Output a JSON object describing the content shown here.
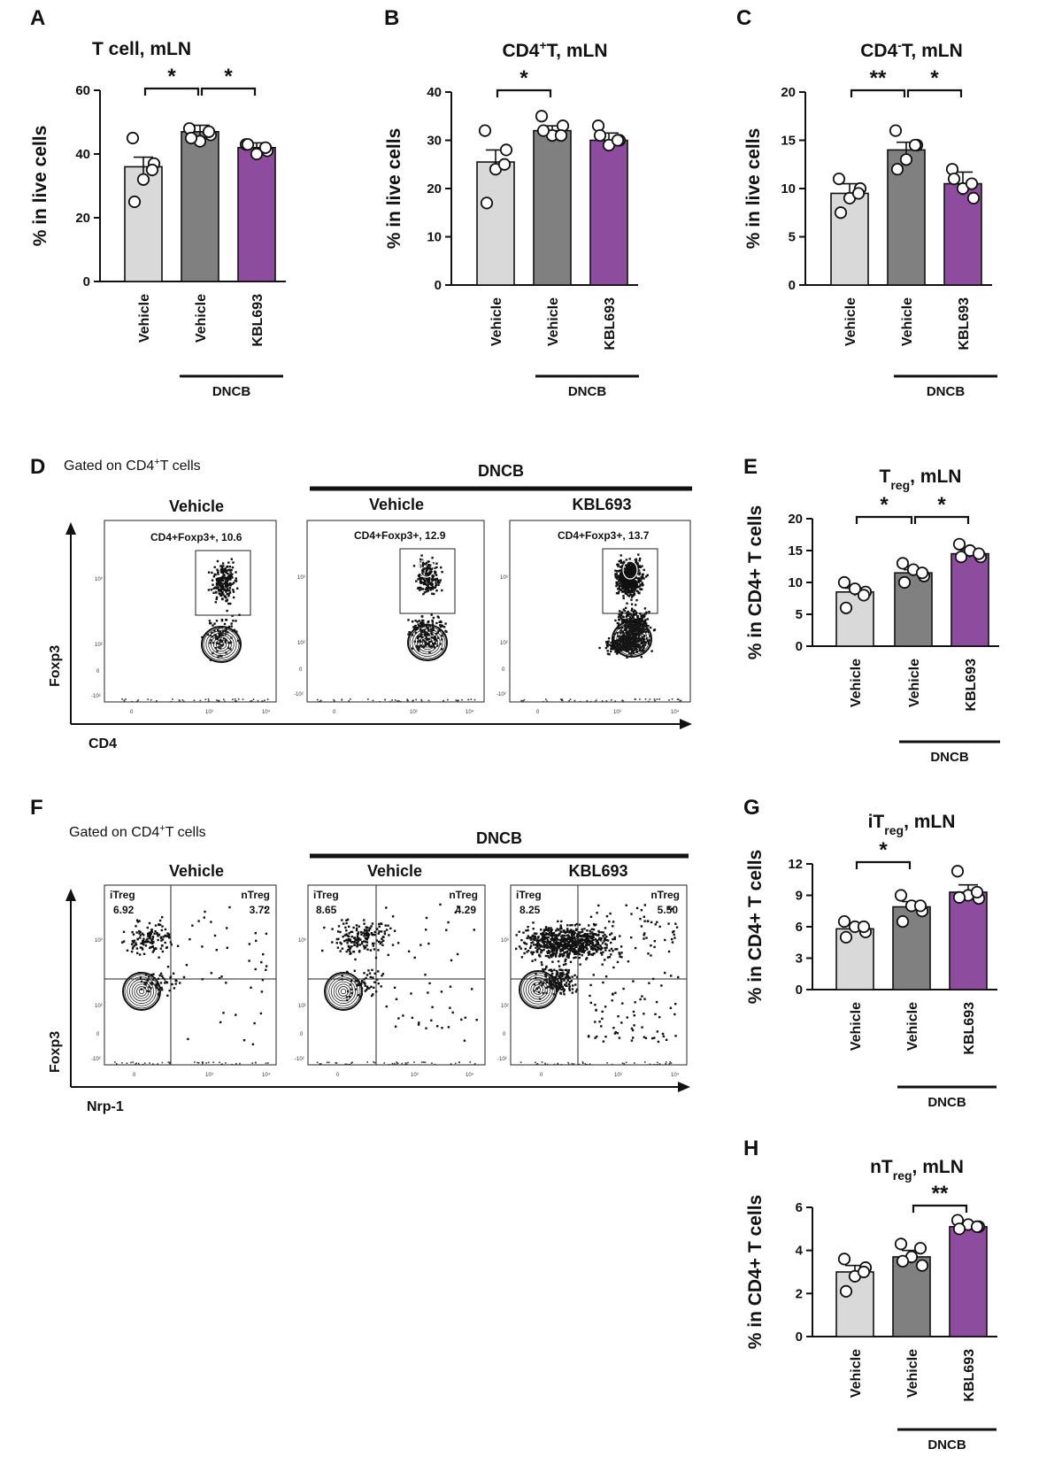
{
  "chart_data": [
    {
      "id": "A",
      "type": "bar",
      "title": "T cell, mLN",
      "ylabel": "% in live cells",
      "ylim": [
        0,
        60
      ],
      "yticks": [
        0,
        20,
        40,
        60
      ],
      "categories": [
        "Vehicle",
        "Vehicle",
        "KBL693"
      ],
      "group_label": "DNCB",
      "colors": [
        "#d9d9d9",
        "#808080",
        "#8e4c9e"
      ],
      "values": [
        36,
        47,
        42
      ],
      "sem": [
        3,
        2,
        1.5
      ],
      "points": [
        [
          45,
          37,
          32,
          25,
          35
        ],
        [
          48,
          46,
          44,
          45,
          47
        ],
        [
          43,
          41,
          40,
          43,
          42
        ]
      ],
      "significance": [
        {
          "from": 0,
          "to": 1,
          "label": "*"
        },
        {
          "from": 1,
          "to": 2,
          "label": "*"
        }
      ]
    },
    {
      "id": "B",
      "type": "bar",
      "title": "CD4+T, mLN",
      "title_main": "CD4",
      "title_sup": "+",
      "title_rest": "T, mLN",
      "ylabel": "% in live cells",
      "ylim": [
        0,
        40
      ],
      "yticks": [
        0,
        10,
        20,
        30,
        40
      ],
      "categories": [
        "Vehicle",
        "Vehicle",
        "KBL693"
      ],
      "group_label": "DNCB",
      "colors": [
        "#d9d9d9",
        "#808080",
        "#8e4c9e"
      ],
      "values": [
        25.5,
        32,
        30
      ],
      "sem": [
        2.5,
        1,
        1.5
      ],
      "points": [
        [
          32,
          28,
          24,
          17,
          25
        ],
        [
          35,
          33,
          31,
          32,
          31
        ],
        [
          33,
          30,
          29,
          31,
          30
        ]
      ],
      "significance": [
        {
          "from": 0,
          "to": 1,
          "label": "*"
        }
      ]
    },
    {
      "id": "C",
      "type": "bar",
      "title": "CD4-T, mLN",
      "title_main": "CD4",
      "title_sup": "-",
      "title_rest": "T, mLN",
      "ylabel": "% in live cells",
      "ylim": [
        0,
        20
      ],
      "yticks": [
        0,
        5,
        10,
        15,
        20
      ],
      "categories": [
        "Vehicle",
        "Vehicle",
        "KBL693"
      ],
      "group_label": "DNCB",
      "colors": [
        "#d9d9d9",
        "#808080",
        "#8e4c9e"
      ],
      "values": [
        9.5,
        14,
        10.5
      ],
      "sem": [
        1,
        0.8,
        1.2
      ],
      "points": [
        [
          11,
          10,
          9,
          7.5,
          9.5
        ],
        [
          16,
          14.5,
          13,
          12,
          14.5
        ],
        [
          12,
          9,
          10,
          11,
          10.5
        ]
      ],
      "significance": [
        {
          "from": 0,
          "to": 1,
          "label": "**"
        },
        {
          "from": 1,
          "to": 2,
          "label": "*"
        }
      ]
    },
    {
      "id": "E",
      "type": "bar",
      "title": "Treg, mLN",
      "title_main": "T",
      "title_sub": "reg",
      "title_rest": ", mLN",
      "ylabel": "% in CD4+ T cells",
      "ylim": [
        0,
        20
      ],
      "yticks": [
        0,
        5,
        10,
        15,
        20
      ],
      "categories": [
        "Vehicle",
        "Vehicle",
        "KBL693"
      ],
      "group_label": "DNCB",
      "colors": [
        "#d9d9d9",
        "#808080",
        "#8e4c9e"
      ],
      "values": [
        8.5,
        11.5,
        14.5
      ],
      "sem": [
        0.6,
        0.5,
        0.6
      ],
      "points": [
        [
          10,
          8.5,
          9,
          6,
          8
        ],
        [
          13,
          11,
          12,
          10,
          11.5
        ],
        [
          16,
          14,
          15,
          14,
          14.5
        ]
      ],
      "significance": [
        {
          "from": 0,
          "to": 1,
          "label": "*"
        },
        {
          "from": 1,
          "to": 2,
          "label": "*"
        }
      ]
    },
    {
      "id": "G",
      "type": "bar",
      "title": "iTreg, mLN",
      "title_main": "iT",
      "title_sub": "reg",
      "title_rest": ", mLN",
      "ylabel": "% in CD4+ T cells",
      "ylim": [
        0,
        12
      ],
      "yticks": [
        0,
        3,
        6,
        9,
        12
      ],
      "categories": [
        "Vehicle",
        "Vehicle",
        "KBL693"
      ],
      "group_label": "DNCB",
      "colors": [
        "#d9d9d9",
        "#808080",
        "#8e4c9e"
      ],
      "values": [
        5.8,
        7.9,
        9.3
      ],
      "sem": [
        0.4,
        0.5,
        0.7
      ],
      "points": [
        [
          6.5,
          5.5,
          6,
          5,
          6
        ],
        [
          9,
          7.5,
          8,
          6.5,
          8
        ],
        [
          11.3,
          8.7,
          9,
          8.8,
          9.3
        ]
      ],
      "significance": [
        {
          "from": 0,
          "to": 1,
          "label": "*"
        }
      ]
    },
    {
      "id": "H",
      "type": "bar",
      "title": "nTreg, mLN",
      "title_main": "nT",
      "title_sub": "reg",
      "title_rest": ", mLN",
      "ylabel": "% in CD4+ T cells",
      "ylim": [
        0,
        6
      ],
      "yticks": [
        0,
        2,
        4,
        6
      ],
      "categories": [
        "Vehicle",
        "Vehicle",
        "KBL693"
      ],
      "group_label": "DNCB",
      "colors": [
        "#d9d9d9",
        "#808080",
        "#8e4c9e"
      ],
      "values": [
        3,
        3.7,
        5.1
      ],
      "sem": [
        0.3,
        0.3,
        0.15
      ],
      "points": [
        [
          3.6,
          3.2,
          2.8,
          2.1,
          3.0
        ],
        [
          4.3,
          3.3,
          3.7,
          3.5,
          4.1
        ],
        [
          5.4,
          5.1,
          5.2,
          5.0,
          5.1
        ]
      ],
      "significance": [
        {
          "from": 1,
          "to": 2,
          "label": "**"
        }
      ]
    }
  ],
  "flow_D": {
    "panel": "D",
    "caption": "Gated on CD4+T cells",
    "caption_main": "Gated on CD4",
    "caption_sup": "+",
    "caption_rest": "T cells",
    "group_label": "DNCB",
    "xaxis": "CD4",
    "yaxis": "Foxp3",
    "plots": [
      {
        "title": "Vehicle",
        "gate": "CD4+Foxp3+, 10.6",
        "gate_pct": 10.6
      },
      {
        "title": "Vehicle",
        "gate": "CD4+Foxp3+, 12.9",
        "gate_pct": 12.9
      },
      {
        "title": "KBL693",
        "gate": "CD4+Foxp3+, 13.7",
        "gate_pct": 13.7
      }
    ]
  },
  "flow_F": {
    "panel": "F",
    "caption": "Gated on CD4+T cells",
    "caption_main": "Gated on CD4",
    "caption_sup": "+",
    "caption_rest": "T cells",
    "group_label": "DNCB",
    "xaxis": "Nrp-1",
    "yaxis": "Foxp3",
    "q_left": "iTreg",
    "q_right": "nTreg",
    "plots": [
      {
        "title": "Vehicle",
        "itreg": "6.92",
        "ntreg": "3.72"
      },
      {
        "title": "Vehicle",
        "itreg": "8.65",
        "ntreg": "4.29"
      },
      {
        "title": "KBL693",
        "itreg": "8.25",
        "ntreg": "5.50"
      }
    ]
  },
  "axis_ticks": {
    "t0": "0",
    "t3": "10³",
    "t4": "10⁴",
    "t2": "10²",
    "tm2": "-10²"
  }
}
